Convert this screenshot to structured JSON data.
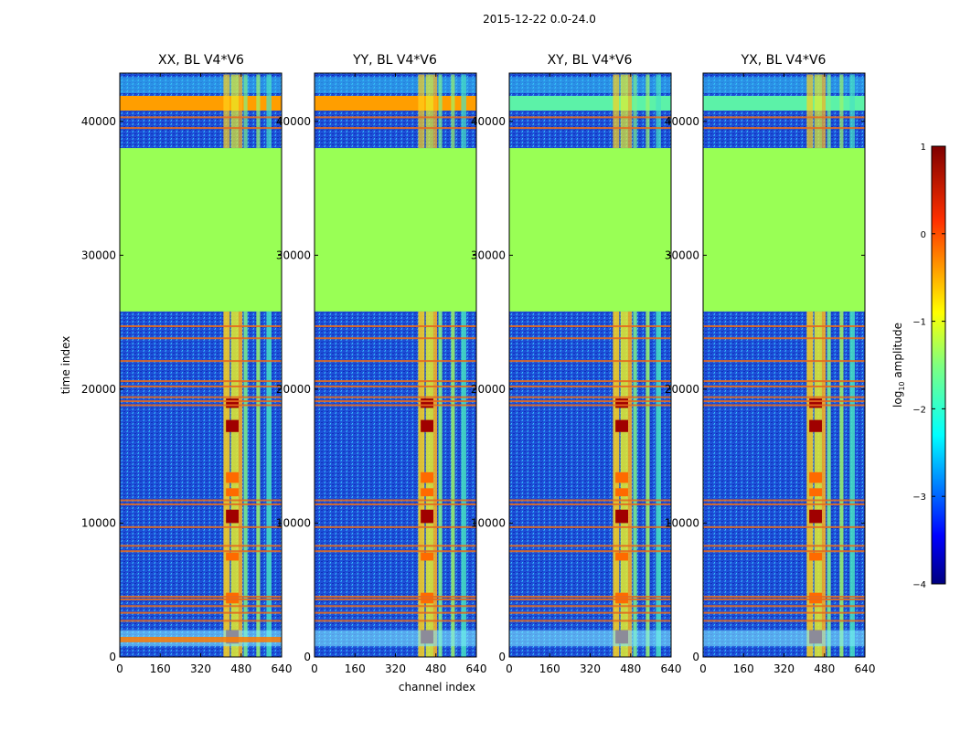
{
  "figure": {
    "suptitle": "2015-12-22 0.0-24.0"
  },
  "chart_data": [
    {
      "type": "heatmap",
      "title": "XX, BL V4*V6",
      "xlabel": "",
      "ylabel": "time index",
      "xlim": [
        0,
        640
      ],
      "ylim": [
        0,
        43600
      ],
      "xticks": [
        "0",
        "160",
        "320",
        "480",
        "640"
      ],
      "yticks": [
        "0",
        "10000",
        "20000",
        "30000",
        "40000"
      ]
    },
    {
      "type": "heatmap",
      "title": "YY, BL V4*V6",
      "xlabel": "channel index",
      "ylabel": "",
      "xlim": [
        0,
        640
      ],
      "ylim": [
        0,
        43600
      ],
      "xticks": [
        "0",
        "160",
        "320",
        "480",
        "640"
      ],
      "yticks": [
        "0",
        "10000",
        "20000",
        "30000",
        "40000"
      ]
    },
    {
      "type": "heatmap",
      "title": "XY, BL V4*V6",
      "xlabel": "",
      "ylabel": "",
      "xlim": [
        0,
        640
      ],
      "ylim": [
        0,
        43600
      ],
      "xticks": [
        "0",
        "160",
        "320",
        "480",
        "640"
      ],
      "yticks": [
        "0",
        "10000",
        "20000",
        "30000",
        "40000"
      ]
    },
    {
      "type": "heatmap",
      "title": "YX, BL V4*V6",
      "xlabel": "",
      "ylabel": "",
      "xlim": [
        0,
        640
      ],
      "ylim": [
        0,
        43600
      ],
      "xticks": [
        "0",
        "160",
        "320",
        "480",
        "640"
      ],
      "yticks": [
        "0",
        "10000",
        "20000",
        "30000",
        "40000"
      ]
    }
  ],
  "colorbar": {
    "label_prefix": "log",
    "label_sub": "10",
    "label_suffix": " amplitude",
    "range": [
      -4,
      1
    ],
    "ticks": [
      "1",
      "0",
      "−1",
      "−2",
      "−3",
      "−4"
    ],
    "colormap": "jet"
  },
  "colors": {
    "flagged_fill": "#99ff55",
    "rfi_line": "#e46a1e",
    "background_low": "#1a3ecc"
  }
}
